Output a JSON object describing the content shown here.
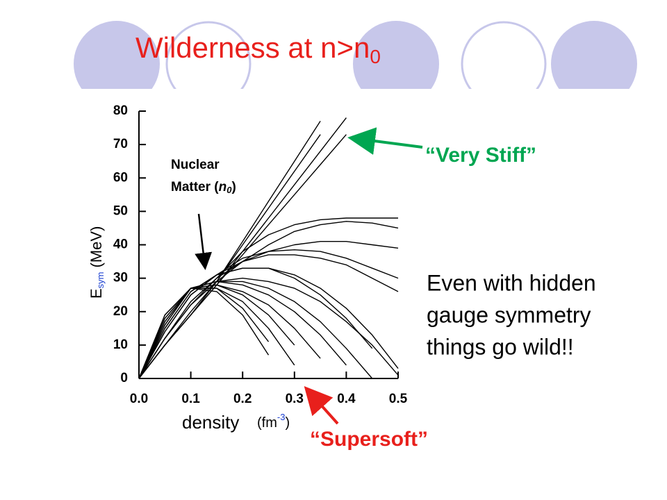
{
  "slide": {
    "title": {
      "text": "Wilderness at n>n",
      "sub": "0"
    },
    "very_stiff": "“Very Stiff”",
    "supersoft": "“Supersoft”",
    "body": [
      "Even with hidden",
      "gauge symmetry",
      "things go wild!!"
    ]
  },
  "chart_data": {
    "type": "line",
    "x_label": {
      "text": "density",
      "unit_open": "(fm",
      "unit_exp": "-3",
      "unit_close": ")"
    },
    "y_label": {
      "text": "E",
      "sub": "sym",
      "unit": "(MeV)"
    },
    "annotation": {
      "line1": "Nuclear",
      "line2": "Matter (",
      "sym": "n",
      "sub": "0",
      "close": ")"
    },
    "x": [
      0,
      0.05,
      0.1,
      0.15,
      0.2,
      0.25,
      0.3,
      0.35,
      0.4,
      0.45,
      0.5
    ],
    "xlim": [
      0,
      0.5
    ],
    "ylim": [
      0,
      80
    ],
    "xticks": [
      {
        "value": 0,
        "label": "0.0"
      },
      0.1,
      0.2,
      0.3,
      0.4,
      0.5
    ],
    "yticks": [
      0,
      10,
      20,
      30,
      40,
      50,
      60,
      70,
      80
    ],
    "color": "#000000",
    "series": [
      {
        "values": [
          0,
          10,
          20,
          29,
          41,
          53,
          65,
          77,
          null,
          null,
          null
        ]
      },
      {
        "values": [
          0,
          10,
          19,
          29,
          40,
          51,
          62,
          73,
          null,
          null,
          null
        ]
      },
      {
        "values": [
          0,
          10,
          19,
          28,
          38,
          48,
          58,
          68,
          78,
          null,
          null
        ]
      },
      {
        "values": [
          0,
          10,
          19,
          28,
          37,
          46,
          55,
          64,
          73,
          null,
          null
        ]
      },
      {
        "values": [
          0,
          12,
          22,
          30,
          38,
          43,
          46,
          47.5,
          48,
          48,
          48
        ]
      },
      {
        "values": [
          0,
          12,
          22,
          29,
          35,
          40,
          44,
          46,
          47,
          46.5,
          45
        ]
      },
      {
        "values": [
          0,
          12,
          23,
          30,
          35,
          38,
          40,
          41,
          41,
          40,
          39
        ]
      },
      {
        "values": [
          0,
          14,
          25,
          31,
          36,
          38,
          38.5,
          38,
          36,
          33,
          30
        ]
      },
      {
        "values": [
          0,
          14,
          25,
          31,
          35,
          37,
          37,
          36,
          34,
          30,
          26
        ]
      },
      {
        "values": [
          0,
          15,
          26,
          31,
          33,
          33,
          31,
          27,
          21,
          13,
          3
        ]
      },
      {
        "values": [
          0,
          15,
          26,
          31,
          33,
          33,
          30,
          25,
          18,
          9,
          null
        ]
      },
      {
        "values": [
          0,
          16,
          27,
          29,
          30,
          29,
          27,
          23,
          17,
          10,
          1
        ]
      },
      {
        "values": [
          0,
          16,
          27,
          29,
          29,
          27,
          23,
          17,
          9,
          0,
          null
        ]
      },
      {
        "values": [
          0,
          17,
          27,
          29,
          28,
          25,
          20,
          13,
          4,
          null,
          null
        ]
      },
      {
        "values": [
          0,
          17,
          27,
          28,
          26,
          22,
          15,
          6,
          null,
          null,
          null
        ]
      },
      {
        "values": [
          0,
          18,
          27,
          28,
          25,
          19,
          10,
          null,
          null,
          null,
          null
        ]
      },
      {
        "values": [
          0,
          18,
          27,
          27,
          23,
          15,
          4,
          null,
          null,
          null,
          null
        ]
      },
      {
        "values": [
          0,
          19,
          27,
          27,
          21,
          11,
          null,
          null,
          null,
          null,
          null
        ]
      },
      {
        "values": [
          0,
          19,
          27,
          26,
          19,
          7,
          null,
          null,
          null,
          null,
          null
        ]
      }
    ]
  }
}
